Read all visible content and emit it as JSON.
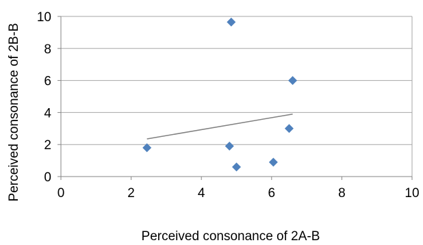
{
  "chart_data": {
    "type": "scatter",
    "title": "",
    "xlabel": "Perceived consonance of 2A-B",
    "ylabel": "Perceived consonance of 2B-B",
    "xlim": [
      0,
      10
    ],
    "ylim": [
      0,
      10
    ],
    "x_ticks": [
      "0",
      "2",
      "4",
      "6",
      "8",
      "10"
    ],
    "y_ticks": [
      "0",
      "2",
      "4",
      "6",
      "8",
      "10"
    ],
    "grid": "horizontal",
    "legend": "none",
    "points": [
      {
        "x": 2.45,
        "y": 1.8
      },
      {
        "x": 4.85,
        "y": 9.65
      },
      {
        "x": 4.8,
        "y": 1.9
      },
      {
        "x": 5.0,
        "y": 0.6
      },
      {
        "x": 6.05,
        "y": 0.9
      },
      {
        "x": 6.5,
        "y": 3.0
      },
      {
        "x": 6.6,
        "y": 6.0
      }
    ],
    "trendline": {
      "x_start": 2.45,
      "y_start": 2.35,
      "x_end": 6.6,
      "y_end": 3.9
    },
    "colors": {
      "marker": "#4F81BD",
      "trendline": "#808080",
      "grid": "#A6A6A6",
      "axis": "#868686"
    }
  }
}
